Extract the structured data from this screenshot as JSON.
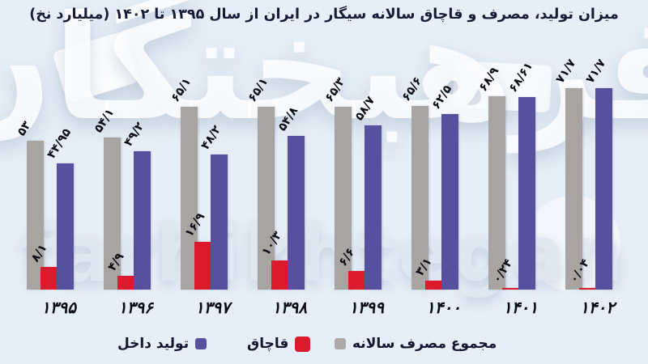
{
  "title": "میزان تولید، مصرف و قاچاق سالانه سیگار در ایران از سال ۱۳۹۵ تا ۱۴۰۲ (میلیارد نخ)",
  "watermark": {
    "persian": "فرهیختگان",
    "latin": "farhikhtegan"
  },
  "colors": {
    "background": "#e6eef7",
    "production_blue": "#55519f",
    "smuggling_red": "#dc1a2e",
    "consumption_gray": "#a8a4a1",
    "text_dark": "#161c38"
  },
  "legend": [
    {
      "key": "production",
      "label": "تولید داخل",
      "color": "#55519f",
      "swatch_side": "right"
    },
    {
      "key": "smuggling",
      "label": "قاچاق",
      "color": "#dc1a2e",
      "swatch_side": "right"
    },
    {
      "key": "consumption",
      "label": "مجموع مصرف سالانه",
      "color": "#aeaaa8",
      "swatch_side": "left"
    }
  ],
  "chart_data": {
    "type": "bar",
    "title": "میزان تولید، مصرف و قاچاق سالانه سیگار در ایران از سال ۱۳۹۵ تا ۱۴۰۲ (میلیارد نخ)",
    "unit": "میلیارد نخ",
    "categories": [
      "۱۳۹۵",
      "۱۳۹۶",
      "۱۳۹۷",
      "۱۳۹۸",
      "۱۳۹۹",
      "۱۴۰۰",
      "۱۴۰۱",
      "۱۴۰۲"
    ],
    "categories_en": [
      1395,
      1396,
      1397,
      1398,
      1399,
      1400,
      1401,
      1402
    ],
    "ylim": [
      0,
      75
    ],
    "grid": false,
    "legend_position": "bottom",
    "series": [
      {
        "key": "consumption",
        "name": "مجموع مصرف سالانه",
        "color": "#a8a4a1",
        "values": [
          53,
          54.1,
          65.1,
          65.1,
          65.3,
          65.6,
          68.9,
          71.7
        ],
        "labels": [
          "۵۳",
          "۵۴/۱",
          "۶۵/۱",
          "۶۵/۱",
          "۶۵/۳",
          "۶۵/۶",
          "۶۸/۹",
          "۷۱/۷"
        ]
      },
      {
        "key": "smuggling",
        "name": "قاچاق",
        "color": "#dc1a2e",
        "values": [
          8.1,
          4.9,
          16.9,
          10.3,
          6.6,
          3.1,
          0.24,
          0.04
        ],
        "labels": [
          "۸/۱",
          "۴/۹",
          "۱۶/۹",
          "۱۰/۳",
          "۶/۶",
          "۳/۱",
          "۰/۲۴",
          "۰/۰۴"
        ]
      },
      {
        "key": "production",
        "name": "تولید داخل",
        "color": "#55519f",
        "values": [
          44.95,
          49.2,
          48.2,
          54.8,
          58.7,
          62.5,
          68.61,
          71.7
        ],
        "labels": [
          "۴۴/۹۵",
          "۴۹/۲",
          "۴۸/۲",
          "۵۴/۸",
          "۵۸/۷",
          "۶۲/۵",
          "۶۸/۶۱",
          "۷۱/۷"
        ]
      }
    ]
  }
}
